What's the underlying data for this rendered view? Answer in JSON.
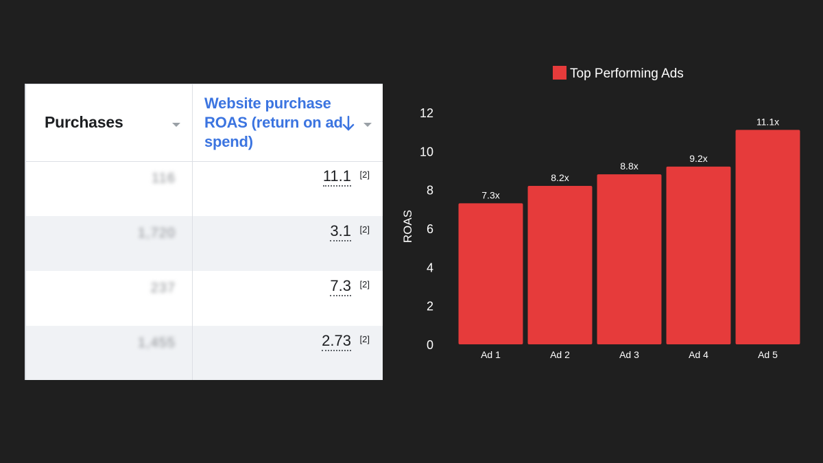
{
  "table": {
    "headers": {
      "purchases": "Purchases",
      "roas": "Website purchase ROAS (return on ad spend)"
    },
    "rows": [
      {
        "purchases": "116",
        "roas": "11.1",
        "note": "[2]"
      },
      {
        "purchases": "1,720",
        "roas": "3.1",
        "note": "[2]"
      },
      {
        "purchases": "237",
        "roas": "7.3",
        "note": "[2]"
      },
      {
        "purchases": "1,455",
        "roas": "2.73",
        "note": "[2]"
      }
    ]
  },
  "chart_data": {
    "type": "bar",
    "categories": [
      "Ad 1",
      "Ad 2",
      "Ad 3",
      "Ad 4",
      "Ad 5"
    ],
    "series": [
      {
        "name": "Top Performing Ads",
        "values": [
          7.3,
          8.2,
          8.8,
          9.2,
          11.1
        ],
        "color": "#e63b3b"
      }
    ],
    "data_labels": [
      "7.3x",
      "8.2x",
      "8.8x",
      "9.2x",
      "11.1x"
    ],
    "xlabel": "",
    "ylabel": "ROAS",
    "ylim": [
      0,
      12
    ],
    "yticks": [
      0,
      2,
      4,
      6,
      8,
      10,
      12
    ],
    "grid": false,
    "legend": "top"
  }
}
